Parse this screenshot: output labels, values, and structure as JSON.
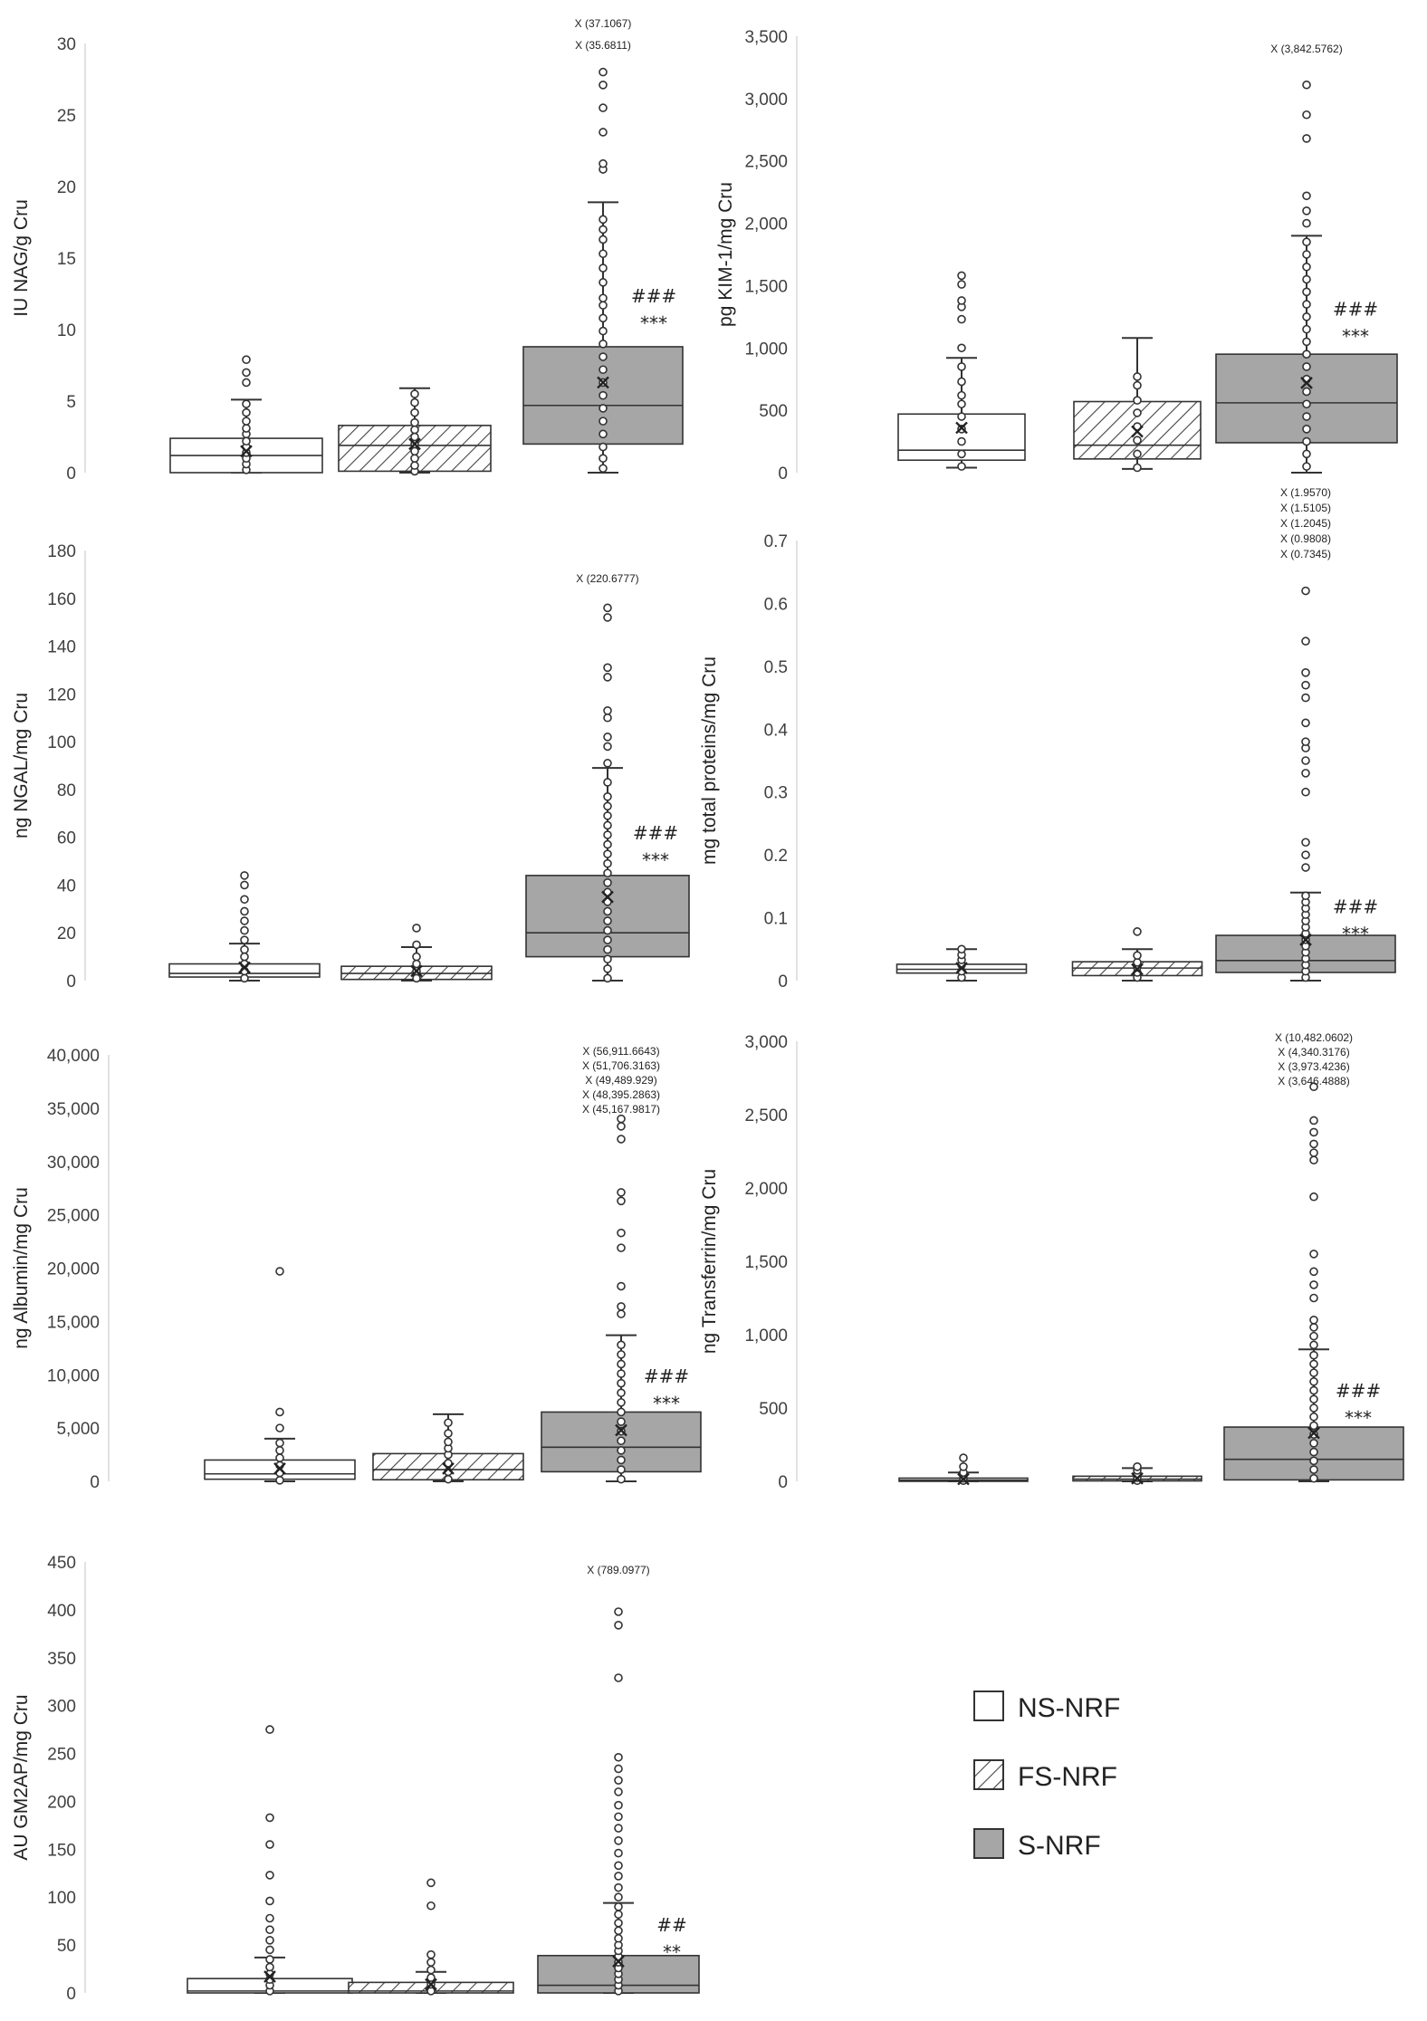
{
  "colors": {
    "ns": "#ffffff",
    "fs_hatch": "#444444",
    "s": "#a6a6a6",
    "line": "#333333",
    "axis": "#d9d9d9"
  },
  "legend": [
    {
      "key": "ns",
      "label": "NS-NRF"
    },
    {
      "key": "fs",
      "label": "FS-NRF"
    },
    {
      "key": "s",
      "label": "S-NRF"
    }
  ],
  "chart_data": [
    {
      "id": "nag",
      "type": "boxplot",
      "ylabel": "IU NAG/g Cru",
      "ylim": [
        0,
        30
      ],
      "ticks": [
        0,
        5,
        10,
        15,
        20,
        25,
        30
      ],
      "tick_labels": [
        "0",
        "5",
        "10",
        "15",
        "20",
        "25",
        "30"
      ],
      "series": [
        {
          "name": "NS-NRF",
          "min": 0,
          "q1": 0,
          "median": 1.2,
          "q3": 2.4,
          "whisker": 5.1,
          "mean": 1.5,
          "outliers": [
            0.2,
            0.6,
            1.0,
            1.4,
            1.8,
            2.2,
            2.7,
            3.1,
            3.6,
            4.2,
            4.8,
            6.3,
            7.0,
            7.9
          ]
        },
        {
          "name": "FS-NRF",
          "min": 0,
          "q1": 0.1,
          "median": 1.9,
          "q3": 3.3,
          "whisker": 5.9,
          "mean": 2.0,
          "outliers": [
            0.1,
            0.5,
            1.0,
            1.5,
            2.0,
            2.5,
            3.0,
            3.5,
            4.2,
            4.9,
            5.5
          ]
        },
        {
          "name": "S-NRF",
          "min": 0,
          "q1": 2.0,
          "median": 4.7,
          "q3": 8.8,
          "whisker": 18.9,
          "mean": 6.3,
          "outliers": [
            0.3,
            1.0,
            1.8,
            2.7,
            3.6,
            4.5,
            5.4,
            6.3,
            7.2,
            8.1,
            9.0,
            9.9,
            10.8,
            11.7,
            12.2,
            13.3,
            14.3,
            15.3,
            16.3,
            17.0,
            17.7,
            21.2,
            21.6,
            23.8,
            25.5,
            27.1,
            28.0
          ]
        }
      ],
      "significance": [
        "###",
        "***"
      ],
      "extreme_labels": [
        "X (37.1067)",
        "X (35.6811)"
      ]
    },
    {
      "id": "kim",
      "type": "boxplot",
      "ylabel": "pg KIM-1/mg Cru",
      "ylim": [
        0,
        3500
      ],
      "ticks": [
        0,
        500,
        1000,
        1500,
        2000,
        2500,
        3000,
        3500
      ],
      "tick_labels": [
        "0",
        "500",
        "1,000",
        "1,500",
        "2,000",
        "2,500",
        "3,000",
        "3,500"
      ],
      "series": [
        {
          "name": "NS-NRF",
          "min": 40,
          "q1": 100,
          "median": 180,
          "q3": 470,
          "whisker": 920,
          "mean": 360,
          "outliers": [
            50,
            150,
            250,
            350,
            450,
            550,
            620,
            730,
            850,
            1000,
            1230,
            1330,
            1380,
            1510,
            1580
          ]
        },
        {
          "name": "FS-NRF",
          "min": 30,
          "q1": 110,
          "median": 220,
          "q3": 570,
          "whisker": 1080,
          "mean": 330,
          "outliers": [
            40,
            150,
            260,
            370,
            480,
            580,
            700,
            770
          ]
        },
        {
          "name": "S-NRF",
          "min": 0,
          "q1": 240,
          "median": 560,
          "q3": 950,
          "whisker": 1900,
          "mean": 720,
          "outliers": [
            50,
            150,
            250,
            350,
            450,
            550,
            650,
            750,
            850,
            950,
            1050,
            1150,
            1250,
            1350,
            1450,
            1550,
            1650,
            1750,
            1850,
            2000,
            2100,
            2220,
            2680,
            2870,
            3110
          ]
        }
      ],
      "significance": [
        "###",
        "***"
      ],
      "extreme_labels": [
        "X (3,842.5762)"
      ]
    },
    {
      "id": "ngal",
      "type": "boxplot",
      "ylabel": "ng NGAL/mg Cru",
      "ylim": [
        0,
        180
      ],
      "ticks": [
        0,
        20,
        40,
        60,
        80,
        100,
        120,
        140,
        160,
        180
      ],
      "tick_labels": [
        "0",
        "20",
        "40",
        "60",
        "80",
        "100",
        "120",
        "140",
        "160",
        "180"
      ],
      "series": [
        {
          "name": "NS-NRF",
          "min": 0,
          "q1": 1.5,
          "median": 3,
          "q3": 7,
          "whisker": 15.5,
          "mean": 5.5,
          "outliers": [
            1,
            4,
            7,
            10,
            13,
            17,
            21,
            25,
            29,
            34,
            40,
            44
          ]
        },
        {
          "name": "FS-NRF",
          "min": 0,
          "q1": 0.5,
          "median": 3,
          "q3": 6,
          "whisker": 14,
          "mean": 4,
          "outliers": [
            1,
            4,
            7,
            10,
            15,
            22
          ]
        },
        {
          "name": "S-NRF",
          "min": 0,
          "q1": 10,
          "median": 20,
          "q3": 44,
          "whisker": 89,
          "mean": 35,
          "outliers": [
            1,
            5,
            9,
            13,
            17,
            21,
            25,
            29,
            33,
            37,
            41,
            45,
            49,
            53,
            57,
            61,
            65,
            69,
            73,
            77,
            83,
            91,
            98,
            102,
            110,
            113,
            127,
            131,
            152,
            156
          ]
        }
      ],
      "significance": [
        "###",
        "***"
      ],
      "extreme_labels": [
        "X (220.6777)"
      ]
    },
    {
      "id": "prot",
      "type": "boxplot",
      "ylabel": "mg total proteins/mg Cru",
      "ylim": [
        0,
        0.7
      ],
      "ticks": [
        0,
        0.1,
        0.2,
        0.3,
        0.4,
        0.5,
        0.6,
        0.7
      ],
      "tick_labels": [
        "0",
        "0.1",
        "0.2",
        "0.3",
        "0.4",
        "0.5",
        "0.6",
        "0.7"
      ],
      "series": [
        {
          "name": "NS-NRF",
          "min": 0,
          "q1": 0.012,
          "median": 0.018,
          "q3": 0.026,
          "whisker": 0.05,
          "mean": 0.02,
          "outliers": [
            0.005,
            0.015,
            0.025,
            0.033,
            0.041,
            0.05
          ]
        },
        {
          "name": "FS-NRF",
          "min": 0,
          "q1": 0.008,
          "median": 0.02,
          "q3": 0.03,
          "whisker": 0.05,
          "mean": 0.018,
          "outliers": [
            0.005,
            0.013,
            0.021,
            0.029,
            0.04,
            0.078
          ]
        },
        {
          "name": "S-NRF",
          "min": 0,
          "q1": 0.013,
          "median": 0.032,
          "q3": 0.072,
          "whisker": 0.14,
          "mean": 0.065,
          "outliers": [
            0.005,
            0.015,
            0.025,
            0.035,
            0.045,
            0.055,
            0.065,
            0.075,
            0.085,
            0.095,
            0.105,
            0.115,
            0.125,
            0.135,
            0.18,
            0.2,
            0.22,
            0.3,
            0.33,
            0.35,
            0.37,
            0.38,
            0.41,
            0.45,
            0.47,
            0.49,
            0.54,
            0.62
          ]
        }
      ],
      "significance": [
        "###",
        "***"
      ],
      "extreme_labels": [
        "X (1.9570)",
        "X (1.5105)",
        "X (1.2045)",
        "X (0.9808)",
        "X (0.7345)"
      ]
    },
    {
      "id": "alb",
      "type": "boxplot",
      "ylabel": "ng Albumin/mg Cru",
      "ylim": [
        0,
        40000
      ],
      "ticks": [
        0,
        5000,
        10000,
        15000,
        20000,
        25000,
        30000,
        35000,
        40000
      ],
      "tick_labels": [
        "0",
        "5,000",
        "10,000",
        "15,000",
        "20,000",
        "25,000",
        "30,000",
        "35,000",
        "40,000"
      ],
      "series": [
        {
          "name": "NS-NRF",
          "min": 0,
          "q1": 200,
          "median": 700,
          "q3": 2000,
          "whisker": 4000,
          "mean": 1200,
          "outliers": [
            100,
            800,
            1500,
            2200,
            2900,
            3600,
            5000,
            6500,
            19700
          ]
        },
        {
          "name": "FS-NRF",
          "min": 0,
          "q1": 150,
          "median": 1100,
          "q3": 2600,
          "whisker": 6300,
          "mean": 1200,
          "outliers": [
            200,
            900,
            1700,
            2500,
            3100,
            3700,
            4500,
            5500
          ]
        },
        {
          "name": "S-NRF",
          "min": 0,
          "q1": 900,
          "median": 3200,
          "q3": 6500,
          "whisker": 13700,
          "mean": 4800,
          "outliers": [
            200,
            1100,
            2000,
            2900,
            3800,
            4700,
            5600,
            6500,
            7400,
            8300,
            9200,
            10100,
            11000,
            11900,
            12800,
            15700,
            16400,
            18300,
            21900,
            23300,
            26300,
            27100,
            32100,
            33300,
            34000
          ]
        }
      ],
      "significance": [
        "###",
        "***"
      ],
      "extreme_labels": [
        "X (56,911.6643)",
        "X (51,706.3163)",
        "X (49,489.929)",
        "X (48,395.2863)",
        "X (45,167.9817)"
      ]
    },
    {
      "id": "trf",
      "type": "boxplot",
      "ylabel": "ng Transferrin/mg Cru",
      "ylim": [
        0,
        3000
      ],
      "ticks": [
        0,
        500,
        1000,
        1500,
        2000,
        2500,
        3000
      ],
      "tick_labels": [
        "0",
        "500",
        "1,000",
        "1,500",
        "2,000",
        "2,500",
        "3,000"
      ],
      "series": [
        {
          "name": "NS-NRF",
          "min": 0,
          "q1": 0,
          "median": 8,
          "q3": 22,
          "whisker": 60,
          "mean": 15,
          "outliers": [
            5,
            20,
            40,
            60,
            100,
            160
          ]
        },
        {
          "name": "FS-NRF",
          "min": 0,
          "q1": 3,
          "median": 15,
          "q3": 35,
          "whisker": 90,
          "mean": 20,
          "outliers": [
            5,
            25,
            50,
            75,
            100
          ]
        },
        {
          "name": "S-NRF",
          "min": 0,
          "q1": 10,
          "median": 150,
          "q3": 370,
          "whisker": 900,
          "mean": 330,
          "outliers": [
            20,
            80,
            140,
            200,
            260,
            320,
            380,
            440,
            500,
            560,
            620,
            680,
            740,
            800,
            860,
            930,
            990,
            1050,
            1100,
            1250,
            1340,
            1430,
            1550,
            1940,
            2190,
            2240,
            2300,
            2380,
            2460,
            2690
          ]
        }
      ],
      "significance": [
        "###",
        "***"
      ],
      "extreme_labels": [
        "X (10,482.0602)",
        "X (4,340.3176)",
        "X (3,973.4236)",
        "X (3,646.4888)"
      ]
    },
    {
      "id": "gm2ap",
      "type": "boxplot",
      "ylabel": "AU GM2AP/mg Cru",
      "ylim": [
        0,
        450
      ],
      "ticks": [
        0,
        50,
        100,
        150,
        200,
        250,
        300,
        350,
        400,
        450
      ],
      "tick_labels": [
        "0",
        "50",
        "100",
        "150",
        "200",
        "250",
        "300",
        "350",
        "400",
        "450"
      ],
      "series": [
        {
          "name": "NS-NRF",
          "min": 0,
          "q1": 0,
          "median": 2,
          "q3": 15,
          "whisker": 37,
          "mean": 17,
          "outliers": [
            2,
            8,
            14,
            20,
            27,
            35,
            45,
            55,
            66,
            78,
            96,
            123,
            155,
            183,
            275
          ]
        },
        {
          "name": "FS-NRF",
          "min": 0,
          "q1": 0,
          "median": 2,
          "q3": 11,
          "whisker": 22,
          "mean": 9,
          "outliers": [
            2,
            9,
            16,
            24,
            32,
            40,
            91,
            115
          ]
        },
        {
          "name": "S-NRF",
          "min": 0,
          "q1": 0,
          "median": 8,
          "q3": 39,
          "whisker": 94,
          "mean": 33,
          "outliers": [
            2,
            8,
            14,
            20,
            26,
            32,
            38,
            44,
            50,
            57,
            65,
            73,
            82,
            90,
            100,
            110,
            122,
            133,
            146,
            159,
            172,
            184,
            196,
            210,
            222,
            234,
            246,
            329,
            384,
            398
          ]
        }
      ],
      "significance": [
        "##",
        "**"
      ],
      "extreme_labels": [
        "X (789.0977)"
      ]
    }
  ]
}
